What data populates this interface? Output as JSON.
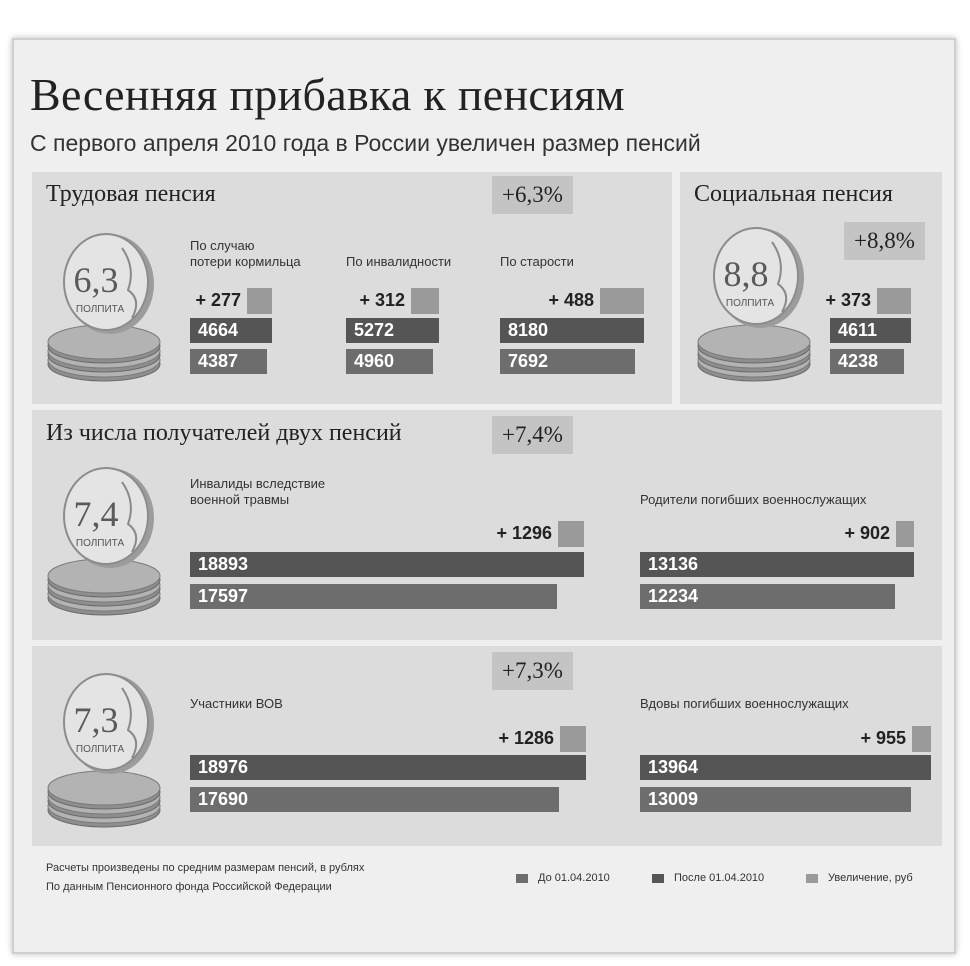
{
  "title": "Весенняя прибавка к пенсиям",
  "subtitle": "С первого апреля 2010 года в России увеличен размер пенсий",
  "colors": {
    "before": "#6d6d6d",
    "after": "#555555",
    "increase": "#9a9a9a",
    "panel": "#dcdcdc"
  },
  "coin_word": "ПОЛПИТА",
  "chart_data": [
    {
      "type": "bar",
      "title": "Трудовая пенсия",
      "percent": "+6,3%",
      "coin_label": "6,3",
      "categories": [
        "По случаю потери кормильца",
        "По инвалидности",
        "По старости"
      ],
      "category_lines": [
        [
          "По случаю",
          "потери кормильца"
        ],
        [
          "По инвалидности"
        ],
        [
          "По старости"
        ]
      ],
      "series": [
        {
          "name": "До 01.04.2010",
          "values": [
            4387,
            4960,
            7692
          ]
        },
        {
          "name": "После 01.04.2010",
          "values": [
            4664,
            5272,
            8180
          ]
        },
        {
          "name": "Увеличение, руб",
          "values": [
            277,
            312,
            488
          ]
        }
      ]
    },
    {
      "type": "bar",
      "title": "Социальная пенсия",
      "percent": "+8,8%",
      "coin_label": "8,8",
      "categories": [
        ""
      ],
      "series": [
        {
          "name": "До 01.04.2010",
          "values": [
            4238
          ]
        },
        {
          "name": "После 01.04.2010",
          "values": [
            4611
          ]
        },
        {
          "name": "Увеличение, руб",
          "values": [
            373
          ]
        }
      ]
    },
    {
      "type": "bar",
      "title": "Из числа получателей двух пенсий",
      "percent": "+7,4%",
      "coin_label": "7,4",
      "categories": [
        "Инвалиды вследствие военной травмы",
        "Родители погибших военнослужащих"
      ],
      "category_lines": [
        [
          "Инвалиды вследствие",
          "военной травмы"
        ],
        [
          "Родители погибших военнослужащих"
        ]
      ],
      "series": [
        {
          "name": "До 01.04.2010",
          "values": [
            17597,
            12234
          ]
        },
        {
          "name": "После 01.04.2010",
          "values": [
            18893,
            13136
          ]
        },
        {
          "name": "Увеличение, руб",
          "values": [
            1296,
            902
          ]
        }
      ]
    },
    {
      "type": "bar",
      "title": "",
      "percent": "+7,3%",
      "coin_label": "7,3",
      "categories": [
        "Участники ВОВ",
        "Вдовы погибших военнослужащих"
      ],
      "category_lines": [
        [
          "Участники ВОВ"
        ],
        [
          "Вдовы погибших военнослужащих"
        ]
      ],
      "series": [
        {
          "name": "До 01.04.2010",
          "values": [
            17690,
            13009
          ]
        },
        {
          "name": "После 01.04.2010",
          "values": [
            18976,
            13964
          ]
        },
        {
          "name": "Увеличение, руб",
          "values": [
            1286,
            955
          ]
        }
      ]
    }
  ],
  "footnote": {
    "line1": "Расчеты произведены по средним размерам пенсий, в рублях",
    "line2": "По данным Пенсионного фонда Российской Федерации"
  },
  "legend": [
    {
      "label": "До 01.04.2010",
      "color": "#6d6d6d"
    },
    {
      "label": "После 01.04.2010",
      "color": "#555555"
    },
    {
      "label": "Увеличение, руб",
      "color": "#9a9a9a"
    }
  ]
}
